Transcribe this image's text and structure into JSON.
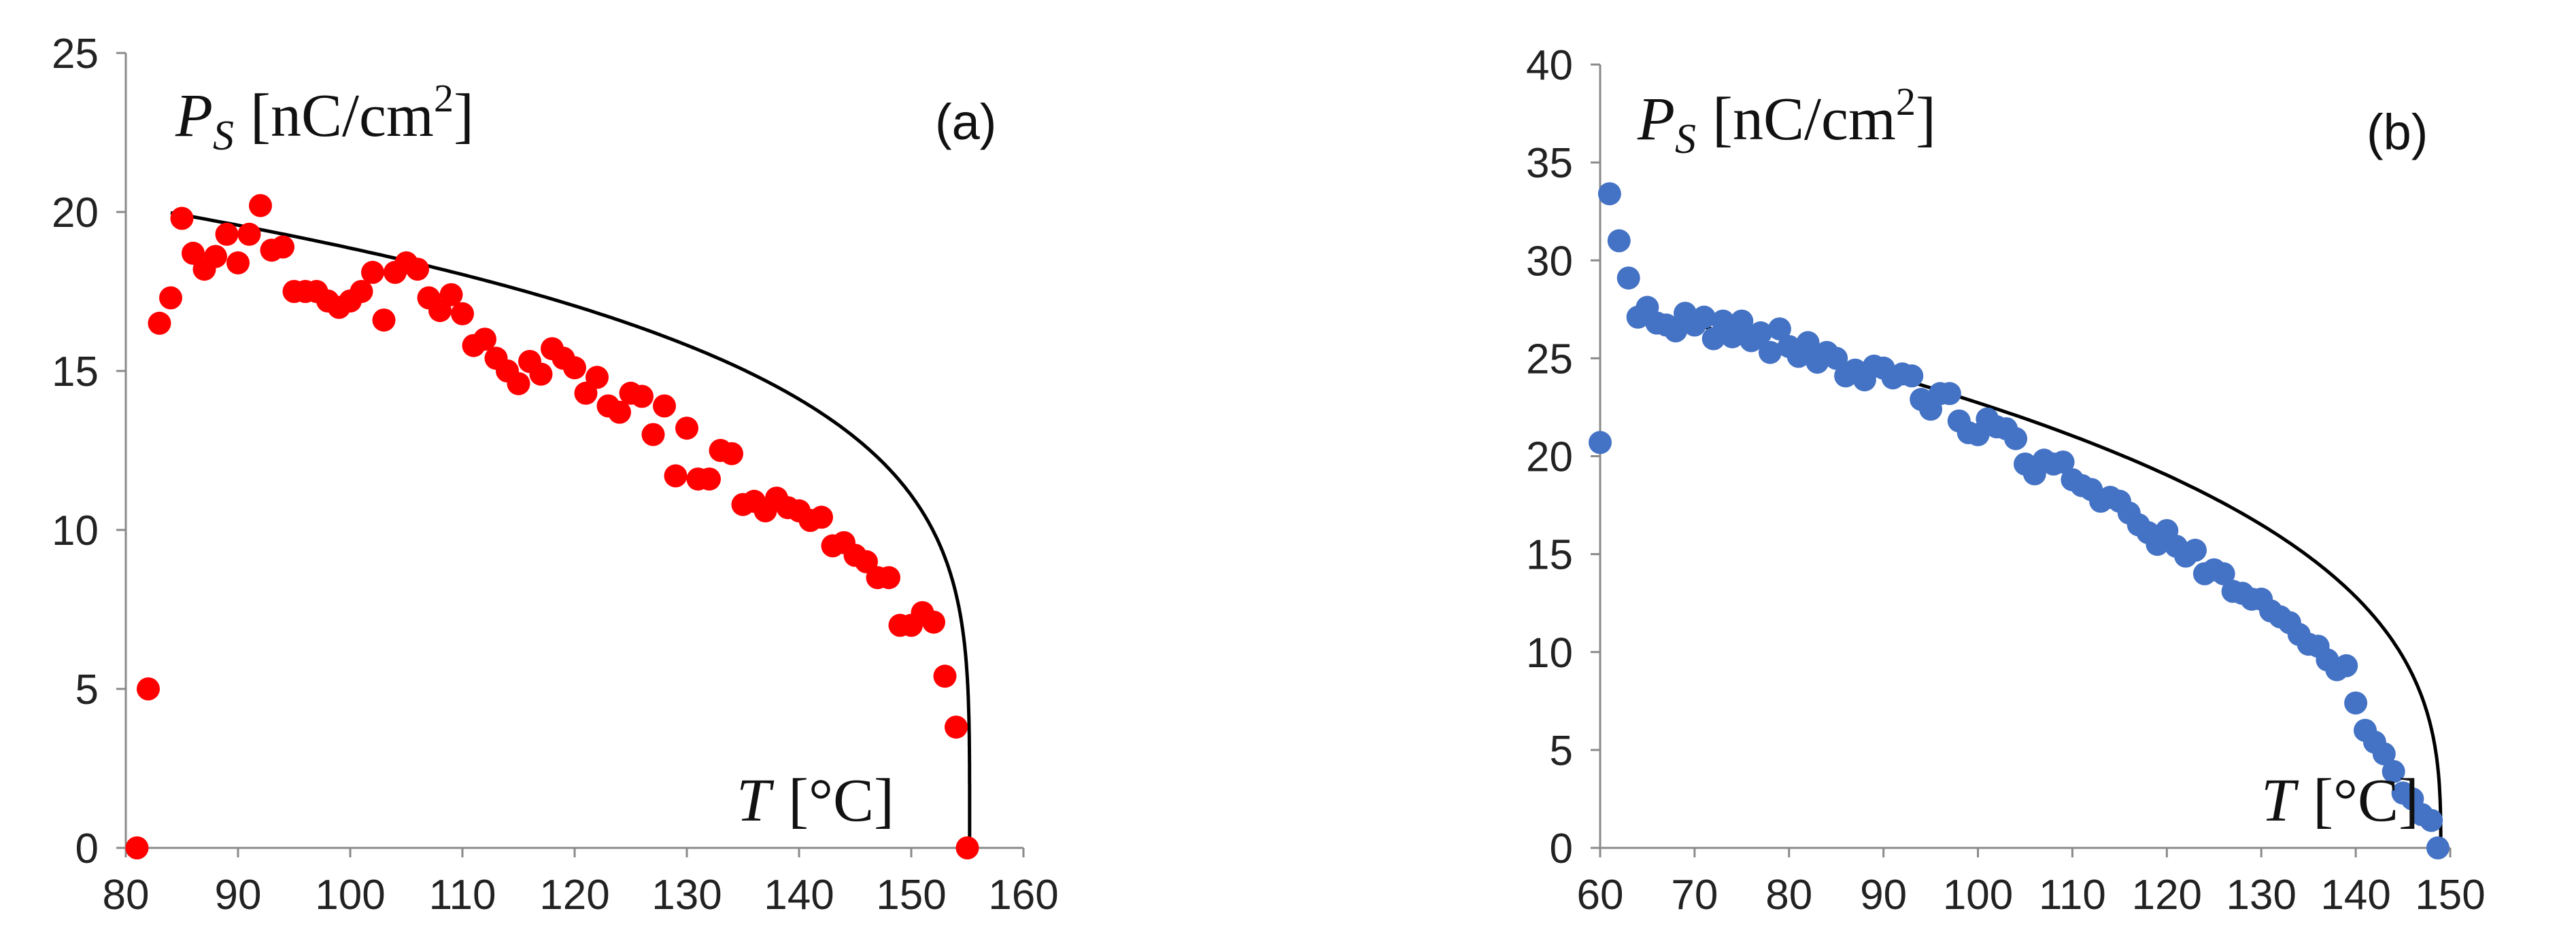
{
  "chart_data": [
    {
      "type": "scatter",
      "panel_label": "(a)",
      "ylabel": {
        "symbol": "P",
        "subscript": "S",
        "unit": "[nC/cm",
        "sup": "2",
        "close": "]"
      },
      "xlabel": {
        "symbol": "T",
        "unit": "[°C]"
      },
      "xlim": [
        80,
        160
      ],
      "ylim": [
        0,
        25
      ],
      "xticks": [
        80,
        90,
        100,
        110,
        120,
        130,
        140,
        150,
        160
      ],
      "yticks": [
        0,
        5,
        10,
        15,
        20,
        25
      ],
      "marker_color": "#ff0000",
      "fit_color": "#000000",
      "grid": false,
      "series": [
        {
          "name": "measured",
          "points": [
            [
              81,
              0
            ],
            [
              82,
              5
            ],
            [
              83,
              16.5
            ],
            [
              84,
              17.3
            ],
            [
              85,
              19.8
            ],
            [
              86,
              18.7
            ],
            [
              87,
              18.2
            ],
            [
              88,
              18.6
            ],
            [
              89,
              19.3
            ],
            [
              90,
              18.4
            ],
            [
              91,
              19.3
            ],
            [
              92,
              20.2
            ],
            [
              93,
              18.8
            ],
            [
              94,
              18.9
            ],
            [
              95,
              17.5
            ],
            [
              96,
              17.5
            ],
            [
              97,
              17.5
            ],
            [
              98,
              17.2
            ],
            [
              99,
              17.0
            ],
            [
              100,
              17.2
            ],
            [
              101,
              17.5
            ],
            [
              102,
              18.1
            ],
            [
              103,
              16.6
            ],
            [
              104,
              18.1
            ],
            [
              105,
              18.4
            ],
            [
              106,
              18.2
            ],
            [
              107,
              17.3
            ],
            [
              108,
              16.9
            ],
            [
              109,
              17.4
            ],
            [
              110,
              16.8
            ],
            [
              111,
              15.8
            ],
            [
              112,
              16.0
            ],
            [
              113,
              15.4
            ],
            [
              114,
              15.0
            ],
            [
              115,
              14.6
            ],
            [
              116,
              15.3
            ],
            [
              117,
              14.9
            ],
            [
              118,
              15.7
            ],
            [
              119,
              15.4
            ],
            [
              120,
              15.1
            ],
            [
              121,
              14.3
            ],
            [
              122,
              14.8
            ],
            [
              123,
              13.9
            ],
            [
              124,
              13.7
            ],
            [
              125,
              14.3
            ],
            [
              126,
              14.2
            ],
            [
              127,
              13.0
            ],
            [
              128,
              13.9
            ],
            [
              129,
              11.7
            ],
            [
              130,
              13.2
            ],
            [
              131,
              11.6
            ],
            [
              132,
              11.6
            ],
            [
              133,
              12.5
            ],
            [
              134,
              12.4
            ],
            [
              135,
              10.8
            ],
            [
              136,
              10.9
            ],
            [
              137,
              10.6
            ],
            [
              138,
              11.0
            ],
            [
              139,
              10.7
            ],
            [
              140,
              10.6
            ],
            [
              141,
              10.3
            ],
            [
              142,
              10.4
            ],
            [
              143,
              9.5
            ],
            [
              144,
              9.6
            ],
            [
              145,
              9.2
            ],
            [
              146,
              9.0
            ],
            [
              147,
              8.5
            ],
            [
              148,
              8.5
            ],
            [
              149,
              7.0
            ],
            [
              150,
              7.0
            ],
            [
              151,
              7.4
            ],
            [
              152,
              7.1
            ],
            [
              153,
              5.4
            ],
            [
              154,
              3.8
            ],
            [
              155,
              0
            ]
          ]
        },
        {
          "name": "fit",
          "tc": 155.2,
          "x_start": 84,
          "model": "power",
          "coef": 7.65,
          "exponent": 0.225
        }
      ]
    },
    {
      "type": "scatter",
      "panel_label": "(b)",
      "ylabel": {
        "symbol": "P",
        "subscript": "S",
        "unit": "[nC/cm",
        "sup": "2",
        "close": "]"
      },
      "xlabel": {
        "symbol": "T",
        "unit": "[°C]"
      },
      "xlim": [
        60,
        150
      ],
      "ylim": [
        0,
        40
      ],
      "xticks": [
        60,
        70,
        80,
        90,
        100,
        110,
        120,
        130,
        140,
        150
      ],
      "yticks": [
        0,
        5,
        10,
        15,
        20,
        25,
        30,
        35,
        40
      ],
      "marker_color": "#4472c4",
      "fit_color": "#000000",
      "grid": false,
      "series": [
        {
          "name": "measured",
          "points": [
            [
              60,
              20.7
            ],
            [
              61,
              33.4
            ],
            [
              62,
              31
            ],
            [
              63,
              29.1
            ],
            [
              64,
              27.1
            ],
            [
              65,
              27.6
            ],
            [
              66,
              26.8
            ],
            [
              67,
              26.7
            ],
            [
              68,
              26.4
            ],
            [
              69,
              27.3
            ],
            [
              70,
              26.7
            ],
            [
              71,
              27.1
            ],
            [
              72,
              26.0
            ],
            [
              73,
              26.9
            ],
            [
              74,
              26.1
            ],
            [
              75,
              26.9
            ],
            [
              76,
              25.9
            ],
            [
              77,
              26.3
            ],
            [
              78,
              25.3
            ],
            [
              79,
              26.5
            ],
            [
              80,
              25.6
            ],
            [
              81,
              25.1
            ],
            [
              82,
              25.8
            ],
            [
              83,
              24.8
            ],
            [
              84,
              25.3
            ],
            [
              85,
              25.0
            ],
            [
              86,
              24.1
            ],
            [
              87,
              24.4
            ],
            [
              88,
              23.9
            ],
            [
              89,
              24.6
            ],
            [
              90,
              24.5
            ],
            [
              91,
              24.0
            ],
            [
              92,
              24.2
            ],
            [
              93,
              24.1
            ],
            [
              94,
              22.9
            ],
            [
              95,
              22.4
            ],
            [
              96,
              23.2
            ],
            [
              97,
              23.2
            ],
            [
              98,
              21.8
            ],
            [
              99,
              21.2
            ],
            [
              100,
              21.1
            ],
            [
              101,
              21.9
            ],
            [
              102,
              21.5
            ],
            [
              103,
              21.4
            ],
            [
              104,
              20.9
            ],
            [
              105,
              19.6
            ],
            [
              106,
              19.1
            ],
            [
              107,
              19.8
            ],
            [
              108,
              19.6
            ],
            [
              109,
              19.7
            ],
            [
              110,
              18.8
            ],
            [
              111,
              18.5
            ],
            [
              112,
              18.3
            ],
            [
              113,
              17.7
            ],
            [
              114,
              17.9
            ],
            [
              115,
              17.7
            ],
            [
              116,
              17.1
            ],
            [
              117,
              16.5
            ],
            [
              118,
              16.1
            ],
            [
              119,
              15.5
            ],
            [
              120,
              16.2
            ],
            [
              121,
              15.4
            ],
            [
              122,
              14.9
            ],
            [
              123,
              15.2
            ],
            [
              124,
              14.0
            ],
            [
              125,
              14.2
            ],
            [
              126,
              14.0
            ],
            [
              127,
              13.1
            ],
            [
              128,
              13.0
            ],
            [
              129,
              12.7
            ],
            [
              130,
              12.7
            ],
            [
              131,
              12.1
            ],
            [
              132,
              11.8
            ],
            [
              133,
              11.5
            ],
            [
              134,
              10.9
            ],
            [
              135,
              10.4
            ],
            [
              136,
              10.3
            ],
            [
              137,
              9.6
            ],
            [
              138,
              9.1
            ],
            [
              139,
              9.3
            ],
            [
              140,
              7.4
            ],
            [
              141,
              6.0
            ],
            [
              142,
              5.4
            ],
            [
              143,
              4.8
            ],
            [
              144,
              3.9
            ],
            [
              145,
              2.8
            ],
            [
              146,
              2.5
            ],
            [
              147,
              1.7
            ],
            [
              148,
              1.4
            ],
            [
              148.7,
              0
            ]
          ]
        },
        {
          "name": "fit",
          "tc": 149,
          "x_start": 64,
          "model": "power",
          "coef": 6.1,
          "exponent": 0.338
        }
      ]
    }
  ]
}
